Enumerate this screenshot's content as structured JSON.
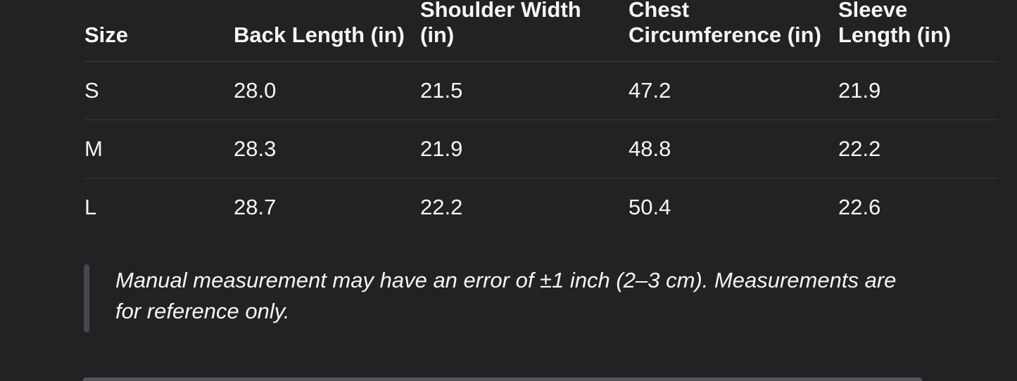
{
  "theme": {
    "background": "#222225",
    "text_color": "#f5f5f7",
    "divider_color": "#3a3a3d",
    "quote_bar_color": "#48484c",
    "scrollbar_color": "#54545a"
  },
  "size_chart": {
    "columns": [
      {
        "label": "Size"
      },
      {
        "label": "Back Length (in)"
      },
      {
        "label": "Shoulder Width (in)"
      },
      {
        "label": "Chest Circumference (in)"
      },
      {
        "label": "Sleeve Length (in)"
      }
    ],
    "rows": [
      {
        "size": "S",
        "back_length": "28.0",
        "shoulder_width": "21.5",
        "chest_circumference": "47.2",
        "sleeve_length": "21.9"
      },
      {
        "size": "M",
        "back_length": "28.3",
        "shoulder_width": "21.9",
        "chest_circumference": "48.8",
        "sleeve_length": "22.2"
      },
      {
        "size": "L",
        "back_length": "28.7",
        "shoulder_width": "22.2",
        "chest_circumference": "50.4",
        "sleeve_length": "22.6"
      }
    ]
  },
  "note": {
    "text": "Manual measurement may have an error of ±1 inch (2–3 cm). Measurements are for reference only."
  }
}
